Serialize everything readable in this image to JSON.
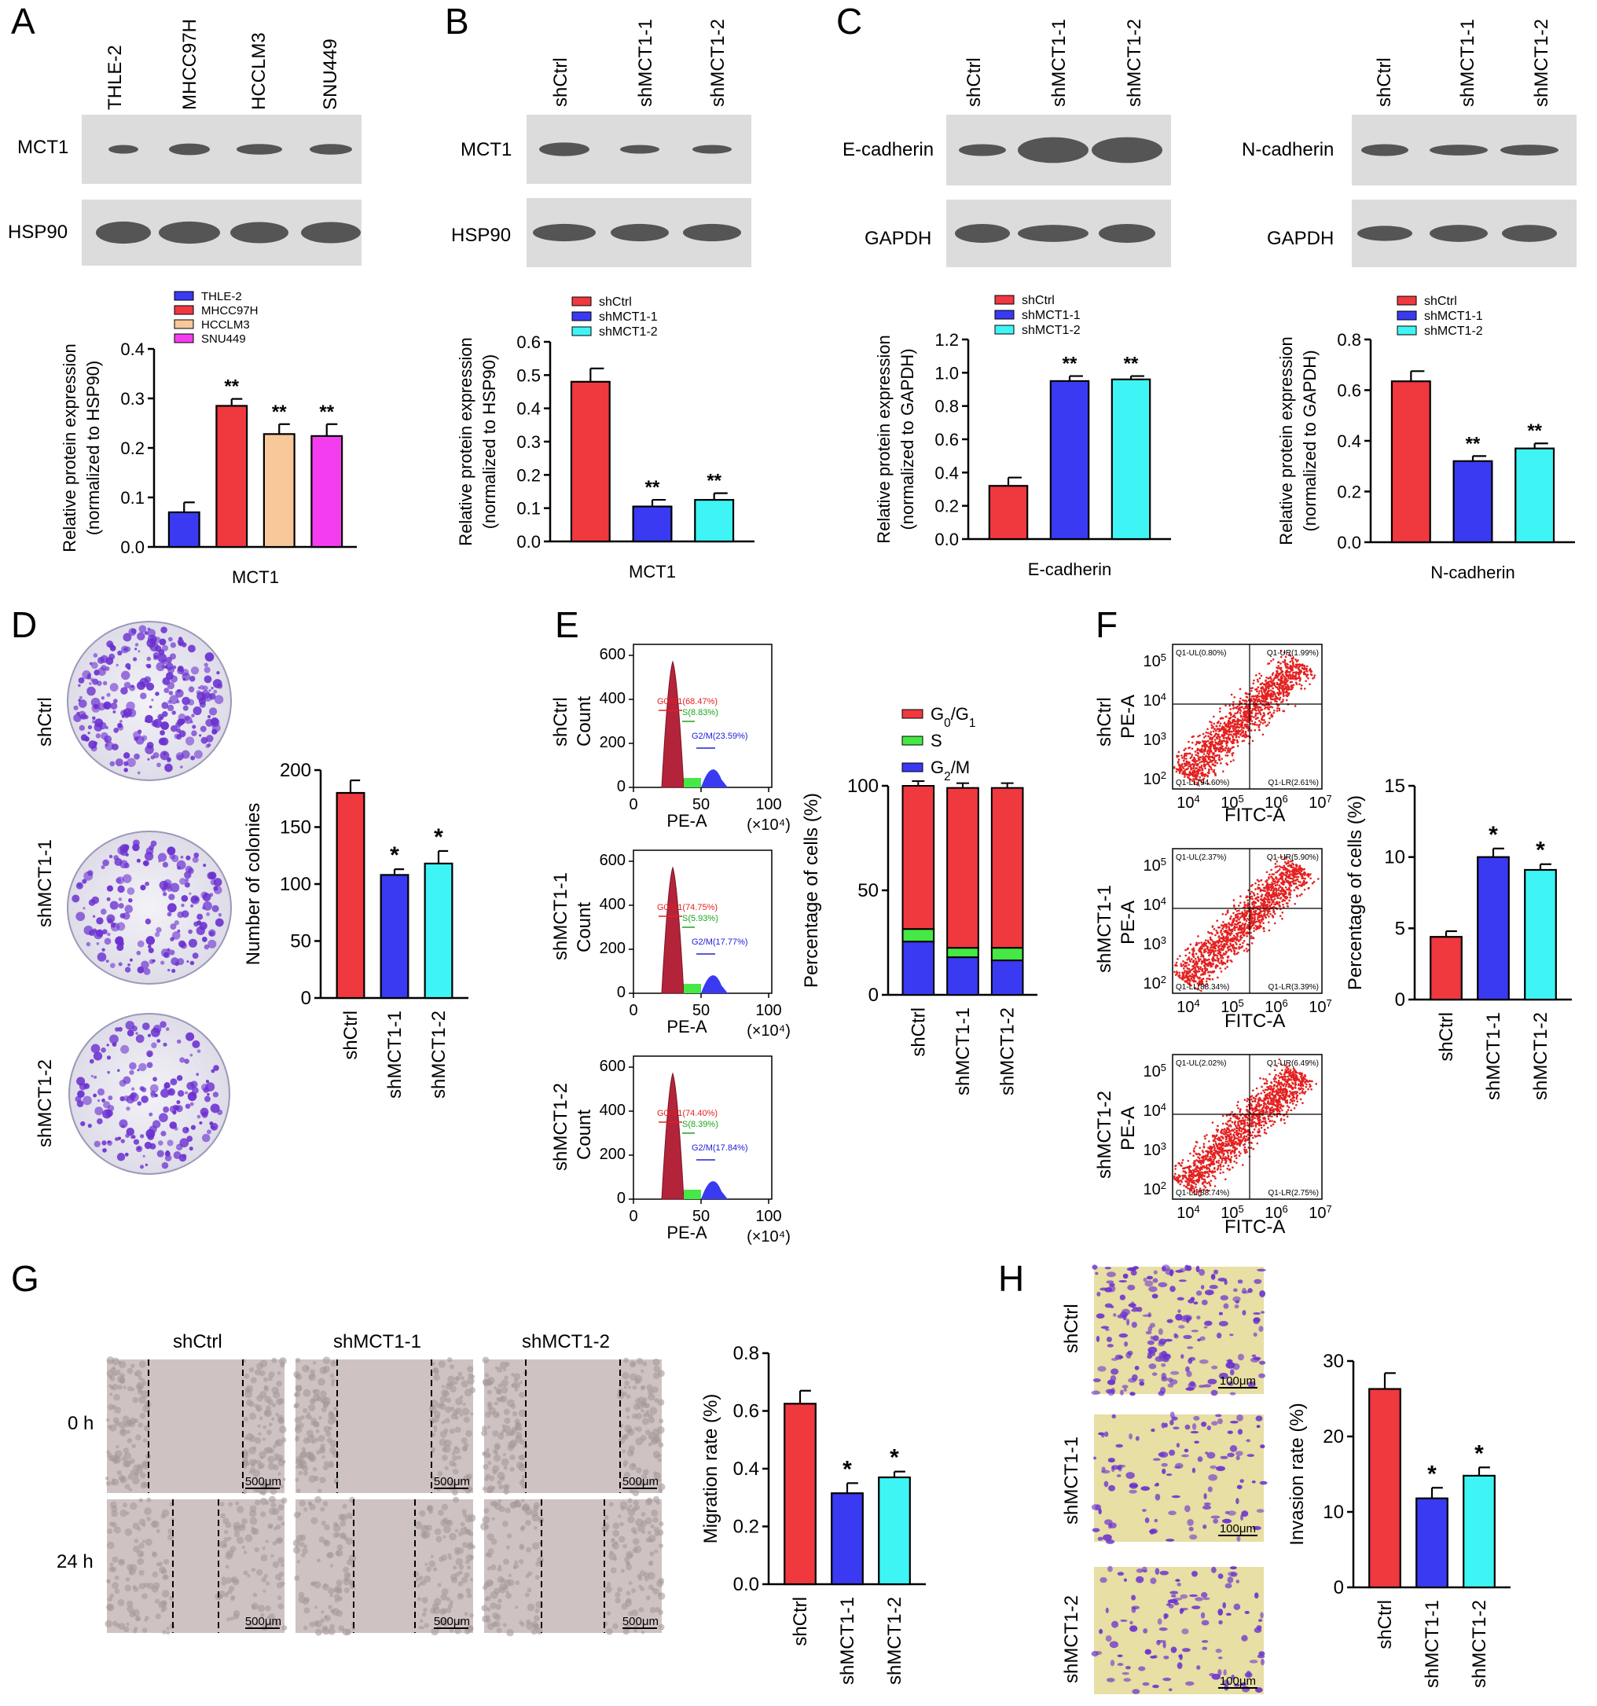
{
  "colors": {
    "red": "#f0383f",
    "blue": "#3a3af2",
    "cyan": "#3ff4f4",
    "tan": "#f8c89a",
    "magenta": "#f53df0",
    "green": "#45e845",
    "wb_band": "#3d3d3d",
    "wb_bg": "#dcdcdc",
    "stain": "#6a2fd0",
    "dish_bg": "#efeef3",
    "scratch_bg": "#cfc2c2",
    "transwell_bg": "#e7dfa3",
    "flow_red": "#e42020",
    "hist_red": "#b3243a"
  },
  "panels": {
    "A": {
      "letter": "A",
      "lanes": [
        "THLE-2",
        "MHCC97H",
        "HCCLM3",
        "SNU449"
      ],
      "rows": [
        "MCT1",
        "HSP90"
      ]
    },
    "B": {
      "letter": "B",
      "lanes": [
        "shCtrl",
        "shMCT1-1",
        "shMCT1-2"
      ],
      "rows": [
        "MCT1",
        "HSP90"
      ]
    },
    "C": {
      "letter": "C",
      "lanes": [
        "shCtrl",
        "shMCT1-1",
        "shMCT1-2"
      ],
      "rows_left": [
        "E-cadherin",
        "GAPDH"
      ],
      "rows_right": [
        "N-cadherin",
        "GAPDH"
      ]
    },
    "D": {
      "letter": "D",
      "rows": [
        "shCtrl",
        "shMCT1-1",
        "shMCT1-2"
      ]
    },
    "E": {
      "letter": "E",
      "rows": [
        "shCtrl",
        "shMCT1-1",
        "shMCT1-2"
      ],
      "count_label": "Count",
      "x_label": "PE-A",
      "x_unit": "(×10⁴)",
      "gates": [
        {
          "g0": "G0/G1(68.47%)",
          "s": "S(8.83%)",
          "g2": "G2/M(23.59%)"
        },
        {
          "g0": "G0/G1(74.75%)",
          "s": "S(5.93%)",
          "g2": "G2/M(17.77%)"
        },
        {
          "g0": "G0/G1(74.40%)",
          "s": "S(8.39%)",
          "g2": "G2/M(17.84%)"
        }
      ]
    },
    "F": {
      "letter": "F",
      "rows": [
        "shCtrl",
        "shMCT1-1",
        "shMCT1-2"
      ],
      "y_label": "PE-A",
      "x_label": "FITC-A",
      "quads": [
        {
          "ul": "Q1-UL(0.80%)",
          "ur": "Q1-UR(1.99%)",
          "ll": "Q1-LL(94.60%)",
          "lr": "Q1-LR(2.61%)"
        },
        {
          "ul": "Q1-UL(2.37%)",
          "ur": "Q1-UR(5.90%)",
          "ll": "Q1-LL(88.34%)",
          "lr": "Q1-LR(3.39%)"
        },
        {
          "ul": "Q1-UL(2.02%)",
          "ur": "Q1-UR(6.49%)",
          "ll": "Q1-LL(88.74%)",
          "lr": "Q1-LR(2.75%)"
        }
      ]
    },
    "G": {
      "letter": "G",
      "cols": [
        "shCtrl",
        "shMCT1-1",
        "shMCT1-2"
      ],
      "rows": [
        "0 h",
        "24 h"
      ],
      "scale": "500μm"
    },
    "H": {
      "letter": "H",
      "rows": [
        "shCtrl",
        "shMCT1-1",
        "shMCT1-2"
      ],
      "scale": "100μm"
    }
  },
  "chart_data": [
    {
      "id": "A",
      "type": "bar",
      "categories": [
        "THLE-2",
        "MHCC97H",
        "HCCLM3",
        "SNU449"
      ],
      "values": [
        0.07,
        0.285,
        0.228,
        0.224
      ],
      "errors": [
        0.02,
        0.014,
        0.02,
        0.024
      ],
      "sig": [
        "",
        "**",
        "**",
        "**"
      ],
      "colors": [
        "blue",
        "red",
        "tan",
        "magenta"
      ],
      "legend": [
        "THLE-2",
        "MHCC97H",
        "HCCLM3",
        "SNU449"
      ],
      "ylabel": [
        "Relative protein expression",
        "(normalized to HSP90)"
      ],
      "xlabel": "MCT1",
      "ylim": [
        0,
        0.4
      ],
      "ticks": [
        "0.0",
        "0.1",
        "0.2",
        "0.3",
        "0.4"
      ]
    },
    {
      "id": "B",
      "type": "bar",
      "categories": [
        "shCtrl",
        "shMCT1-1",
        "shMCT1-2"
      ],
      "values": [
        0.48,
        0.105,
        0.125
      ],
      "errors": [
        0.04,
        0.02,
        0.02
      ],
      "sig": [
        "",
        "**",
        "**"
      ],
      "colors": [
        "red",
        "blue",
        "cyan"
      ],
      "legend": [
        "shCtrl",
        "shMCT1-1",
        "shMCT1-2"
      ],
      "ylabel": [
        "Relative protein expression",
        "(normalized to HSP90)"
      ],
      "xlabel": "MCT1",
      "ylim": [
        0,
        0.6
      ],
      "ticks": [
        "0.0",
        "0.1",
        "0.2",
        "0.3",
        "0.4",
        "0.5",
        "0.6"
      ]
    },
    {
      "id": "C1",
      "type": "bar",
      "categories": [
        "shCtrl",
        "shMCT1-1",
        "shMCT1-2"
      ],
      "values": [
        0.32,
        0.95,
        0.96
      ],
      "errors": [
        0.05,
        0.03,
        0.02
      ],
      "sig": [
        "",
        "**",
        "**"
      ],
      "colors": [
        "red",
        "blue",
        "cyan"
      ],
      "legend": [
        "shCtrl",
        "shMCT1-1",
        "shMCT1-2"
      ],
      "ylabel": [
        "Relative protein expression",
        "(normalized to GAPDH)"
      ],
      "xlabel": "E-cadherin",
      "ylim": [
        0,
        1.2
      ],
      "ticks": [
        "0.0",
        "0.2",
        "0.4",
        "0.6",
        "0.8",
        "1.0",
        "1.2"
      ]
    },
    {
      "id": "C2",
      "type": "bar",
      "categories": [
        "shCtrl",
        "shMCT1-1",
        "shMCT1-2"
      ],
      "values": [
        0.635,
        0.32,
        0.37
      ],
      "errors": [
        0.04,
        0.02,
        0.02
      ],
      "sig": [
        "",
        "**",
        "**"
      ],
      "colors": [
        "red",
        "blue",
        "cyan"
      ],
      "legend": [
        "shCtrl",
        "shMCT1-1",
        "shMCT1-2"
      ],
      "ylabel": [
        "Relative protein expression",
        "(normalized to GAPDH)"
      ],
      "xlabel": "N-cadherin",
      "ylim": [
        0,
        0.8
      ],
      "ticks": [
        "0.0",
        "0.2",
        "0.4",
        "0.6",
        "0.8"
      ]
    },
    {
      "id": "D",
      "type": "bar",
      "categories": [
        "shCtrl",
        "shMCT1-1",
        "shMCT1-2"
      ],
      "values": [
        180,
        108,
        118
      ],
      "errors": [
        11,
        5,
        11
      ],
      "sig": [
        "",
        "*",
        "*"
      ],
      "colors": [
        "red",
        "blue",
        "cyan"
      ],
      "ylabel": [
        "Number of colonies"
      ],
      "ylim": [
        0,
        200
      ],
      "ticks": [
        "0",
        "50",
        "100",
        "150",
        "200"
      ]
    },
    {
      "id": "E",
      "type": "bar",
      "stacked": true,
      "categories": [
        "shCtrl",
        "shMCT1-1",
        "shMCT1-2"
      ],
      "series": [
        {
          "name": "G0/G1",
          "values": [
            68.5,
            76.5,
            76.5
          ],
          "color": "red"
        },
        {
          "name": "S",
          "values": [
            6,
            4.5,
            6
          ],
          "color": "green"
        },
        {
          "name": "G2/M",
          "values": [
            25.5,
            18,
            16.5
          ],
          "color": "blue"
        }
      ],
      "legend": [
        {
          "main": "G",
          "sub": "0",
          "mid": "/G",
          "sub2": "1"
        },
        {
          "main": "S"
        },
        {
          "main": "G",
          "sub": "2",
          "mid": "/M"
        }
      ],
      "ylabel": [
        "Percentage of cells (%)"
      ],
      "ylim": [
        0,
        100
      ],
      "ticks": [
        "0",
        "50",
        "100"
      ]
    },
    {
      "id": "F",
      "type": "bar",
      "categories": [
        "shCtrl",
        "shMCT1-1",
        "shMCT1-2"
      ],
      "values": [
        4.4,
        10.0,
        9.1
      ],
      "errors": [
        0.4,
        0.6,
        0.4
      ],
      "sig": [
        "",
        "*",
        "*"
      ],
      "colors": [
        "red",
        "blue",
        "cyan"
      ],
      "ylabel": [
        "Percentage of cells (%)"
      ],
      "ylim": [
        0,
        15
      ],
      "ticks": [
        "0",
        "5",
        "10",
        "15"
      ]
    },
    {
      "id": "G",
      "type": "bar",
      "categories": [
        "shCtrl",
        "shMCT1-1",
        "shMCT1-2"
      ],
      "values": [
        0.625,
        0.315,
        0.37
      ],
      "errors": [
        0.045,
        0.035,
        0.02
      ],
      "sig": [
        "",
        "*",
        "*"
      ],
      "colors": [
        "red",
        "blue",
        "cyan"
      ],
      "ylabel": [
        "Migration rate (%)"
      ],
      "ylim": [
        0,
        0.8
      ],
      "ticks": [
        "0.0",
        "0.2",
        "0.4",
        "0.6",
        "0.8"
      ]
    },
    {
      "id": "H",
      "type": "bar",
      "categories": [
        "shCtrl",
        "shMCT1-1",
        "shMCT1-2"
      ],
      "values": [
        26.3,
        11.8,
        14.8
      ],
      "errors": [
        2.1,
        1.4,
        1.1
      ],
      "sig": [
        "",
        "*",
        "*"
      ],
      "colors": [
        "red",
        "blue",
        "cyan"
      ],
      "ylabel": [
        "Invasion rate (%)"
      ],
      "ylim": [
        0,
        30
      ],
      "ticks": [
        "0",
        "10",
        "20",
        "30"
      ]
    }
  ]
}
